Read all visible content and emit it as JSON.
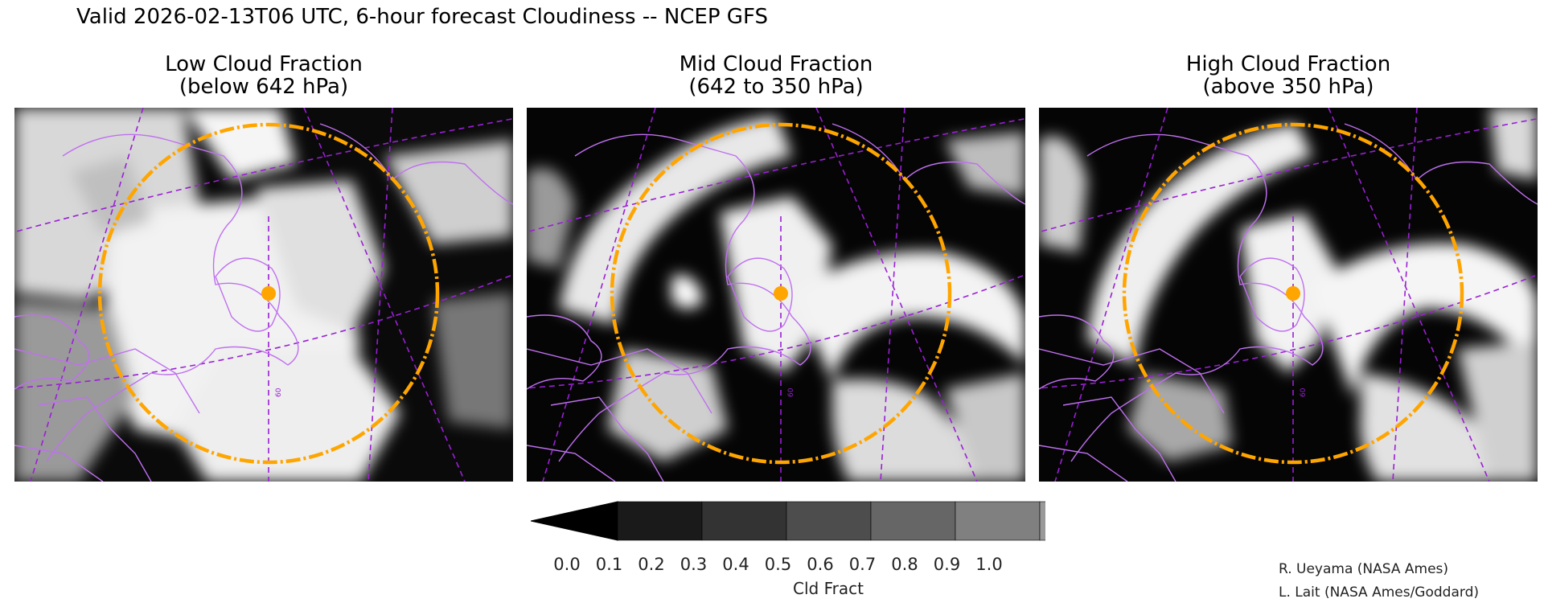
{
  "title": "Valid 2026-02-13T06 UTC, 6-hour forecast Cloudiness -- NCEP GFS",
  "panels": [
    {
      "title_line1": "Low Cloud Fraction",
      "title_line2": "(below 642 hPa)"
    },
    {
      "title_line1": "Mid Cloud Fraction",
      "title_line2": "(642 to 350 hPa)"
    },
    {
      "title_line1": "High Cloud Fraction",
      "title_line2": "(above 350 hPa)"
    }
  ],
  "colorbar": {
    "label": "Cld Fract",
    "ticks": [
      "0.0",
      "0.1",
      "0.2",
      "0.3",
      "0.4",
      "0.5",
      "0.6",
      "0.7",
      "0.8",
      "0.9",
      "1.0"
    ],
    "colors": [
      "#000000",
      "#1a1a1a",
      "#333333",
      "#4d4d4d",
      "#666666",
      "#808080",
      "#999999",
      "#b3b3b3",
      "#cccccc",
      "#e6e6e6",
      "#ffffff"
    ]
  },
  "map_graticule_labels": [
    "60",
    "60",
    "60"
  ],
  "colors": {
    "coastline": "#c070f0",
    "graticule": "#9a1fd6",
    "range_circle": "#ffa500"
  },
  "credits": [
    "R. Ueyama (NASA Ames)",
    "L. Lait (NASA Ames/Goddard)"
  ]
}
